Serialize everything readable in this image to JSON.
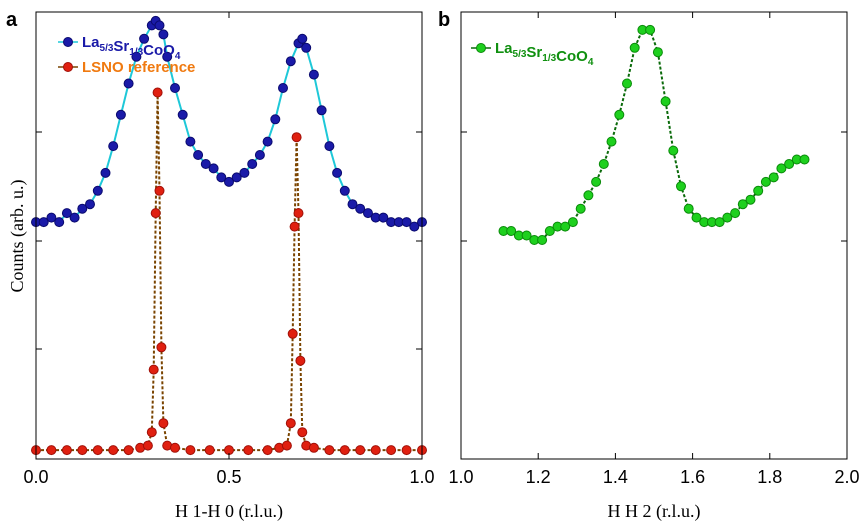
{
  "chart_data": [
    {
      "type": "scatter",
      "panel_label": "a",
      "xlabel": "H 1-H 0 (r.l.u.)",
      "ylabel": "Counts (arb. u.)",
      "xlim": [
        0.0,
        1.0
      ],
      "ylim": [
        0,
        100
      ],
      "x_ticks": [
        "0.0",
        "0.5",
        "1.0"
      ],
      "x_tick_values": [
        0.0,
        0.5,
        1.0
      ],
      "legend_position": "top-left",
      "series": [
        {
          "name": "La5/3Sr1/3CoO4",
          "legend_parts": [
            {
              "text": "La",
              "sub": "5/3"
            },
            {
              "text": "Sr",
              "sub": "1/3"
            },
            {
              "text": "CoO",
              "sub": "4"
            }
          ],
          "color": "#1a1aa8",
          "edge_color": "#0a0a6e",
          "fit_color": "#1ec8d8",
          "x": [
            0.0,
            0.02,
            0.04,
            0.06,
            0.08,
            0.1,
            0.12,
            0.14,
            0.16,
            0.18,
            0.2,
            0.22,
            0.24,
            0.26,
            0.28,
            0.3,
            0.31,
            0.32,
            0.33,
            0.34,
            0.36,
            0.38,
            0.4,
            0.42,
            0.44,
            0.46,
            0.48,
            0.5,
            0.52,
            0.54,
            0.56,
            0.58,
            0.6,
            0.62,
            0.64,
            0.66,
            0.68,
            0.69,
            0.7,
            0.72,
            0.74,
            0.76,
            0.78,
            0.8,
            0.82,
            0.84,
            0.86,
            0.88,
            0.9,
            0.92,
            0.94,
            0.96,
            0.98,
            1.0
          ],
          "y": [
            53,
            53,
            54,
            53,
            55,
            54,
            56,
            57,
            60,
            64,
            70,
            77,
            84,
            90,
            94,
            97,
            98,
            97,
            95,
            90,
            83,
            77,
            71,
            68,
            66,
            65,
            63,
            62,
            63,
            64,
            66,
            68,
            71,
            76,
            83,
            89,
            93,
            94,
            92,
            86,
            78,
            70,
            64,
            60,
            57,
            56,
            55,
            54,
            54,
            53,
            53,
            53,
            52,
            53
          ]
        },
        {
          "name": "LSNO reference",
          "color": "#e02010",
          "edge_color": "#a01008",
          "text_color": "#f07a10",
          "fit_color": "#7a4400",
          "x": [
            0.0,
            0.04,
            0.08,
            0.12,
            0.16,
            0.2,
            0.24,
            0.27,
            0.29,
            0.3,
            0.305,
            0.31,
            0.315,
            0.32,
            0.325,
            0.33,
            0.34,
            0.36,
            0.4,
            0.45,
            0.5,
            0.55,
            0.6,
            0.63,
            0.65,
            0.66,
            0.665,
            0.67,
            0.675,
            0.68,
            0.685,
            0.69,
            0.7,
            0.72,
            0.76,
            0.8,
            0.84,
            0.88,
            0.92,
            0.96,
            1.0
          ],
          "y": [
            2,
            2,
            2,
            2,
            2,
            2,
            2,
            2.5,
            3,
            6,
            20,
            55,
            82,
            60,
            25,
            8,
            3,
            2.5,
            2,
            2,
            2,
            2,
            2,
            2.5,
            3,
            8,
            28,
            52,
            72,
            55,
            22,
            6,
            3,
            2.5,
            2,
            2,
            2,
            2,
            2,
            2,
            2
          ]
        }
      ]
    },
    {
      "type": "scatter",
      "panel_label": "b",
      "xlabel": "H H 2 (r.l.u.)",
      "ylabel": "",
      "xlim": [
        1.0,
        2.0
      ],
      "ylim": [
        0,
        100
      ],
      "x_ticks": [
        "1.0",
        "1.2",
        "1.4",
        "1.6",
        "1.8",
        "2.0"
      ],
      "x_tick_values": [
        1.0,
        1.2,
        1.4,
        1.6,
        1.8,
        2.0
      ],
      "legend_position": "top-left",
      "series": [
        {
          "name": "La5/3Sr1/3CoO4",
          "legend_parts": [
            {
              "text": "La",
              "sub": "5/3"
            },
            {
              "text": "Sr",
              "sub": "1/3"
            },
            {
              "text": "CoO",
              "sub": "4"
            }
          ],
          "color": "#1ed01e",
          "edge_color": "#0a8a0a",
          "text_color": "#109010",
          "fit_color": "#0a6a0a",
          "x": [
            1.11,
            1.13,
            1.15,
            1.17,
            1.19,
            1.21,
            1.23,
            1.25,
            1.27,
            1.29,
            1.31,
            1.33,
            1.35,
            1.37,
            1.39,
            1.41,
            1.43,
            1.45,
            1.47,
            1.49,
            1.51,
            1.53,
            1.55,
            1.57,
            1.59,
            1.61,
            1.63,
            1.65,
            1.67,
            1.69,
            1.71,
            1.73,
            1.75,
            1.77,
            1.79,
            1.81,
            1.83,
            1.85,
            1.87,
            1.89
          ],
          "y": [
            51,
            51,
            50,
            50,
            49,
            49,
            51,
            52,
            52,
            53,
            56,
            59,
            62,
            66,
            71,
            77,
            84,
            92,
            96,
            96,
            91,
            80,
            69,
            61,
            56,
            54,
            53,
            53,
            53,
            54,
            55,
            57,
            58,
            60,
            62,
            63,
            65,
            66,
            67,
            67
          ]
        }
      ]
    }
  ]
}
